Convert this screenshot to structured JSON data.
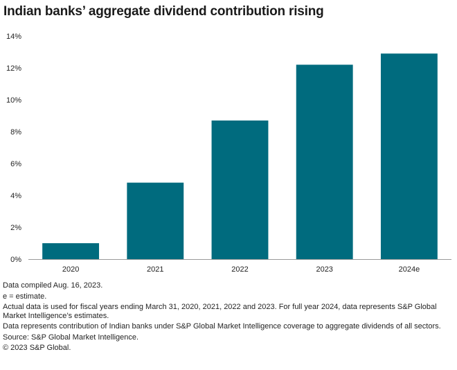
{
  "title": "Indian banks’ aggregate dividend contribution rising",
  "chart_data": {
    "type": "bar",
    "title": "Indian banks’ aggregate dividend contribution rising",
    "categories": [
      "2020",
      "2021",
      "2022",
      "2023",
      "2024e"
    ],
    "values": [
      1.0,
      4.8,
      8.7,
      12.2,
      12.9
    ],
    "y_ticks": [
      "0%",
      "2%",
      "4%",
      "6%",
      "8%",
      "10%",
      "12%",
      "14%"
    ],
    "ylim": [
      0,
      14
    ],
    "unit": "%",
    "grid": false,
    "bar_color": "#006b7e"
  },
  "notes": [
    "Data compiled Aug. 16, 2023.",
    "e = estimate.",
    "Actual data is used for fiscal years ending March 31, 2020, 2021, 2022 and 2023. For full year 2024, data represents S&P Global Market Intelligence’s estimates.",
    "Data represents contribution of Indian banks under S&P Global Market Intelligence coverage to aggregate dividends of all sectors.",
    "Source: S&P Global Market Intelligence.",
    "© 2023 S&P Global."
  ]
}
